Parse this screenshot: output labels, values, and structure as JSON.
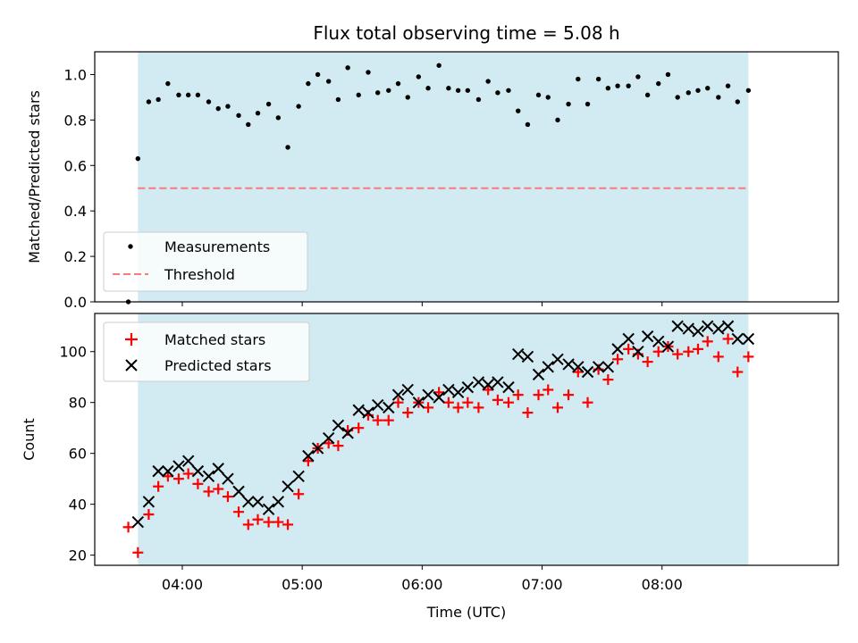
{
  "chart_data": [
    {
      "type": "scatter",
      "title": "Flux total observing time = 5.08 h",
      "xlabel": "",
      "ylabel": "Matched/Predicted stars",
      "ylim": [
        0.0,
        1.1
      ],
      "yticks": [
        "0.0",
        "0.2",
        "0.4",
        "0.6",
        "0.8",
        "1.0"
      ],
      "x_range_hours": [
        3.27,
        9.47
      ],
      "observing_window_hours": [
        3.63,
        8.72
      ],
      "observing_window_color": "#add8e6",
      "grid": false,
      "legend_position": "lower-left",
      "threshold": {
        "name": "Threshold",
        "value": 0.5,
        "x_start_hours": 3.63,
        "x_end_hours": 8.72,
        "color": "#f87a7a",
        "style": "dashed"
      },
      "series": [
        {
          "name": "Measurements",
          "color": "#000000",
          "marker": "dot",
          "x": [
            3.55,
            3.63,
            3.72,
            3.8,
            3.88,
            3.97,
            4.05,
            4.13,
            4.22,
            4.3,
            4.38,
            4.47,
            4.55,
            4.63,
            4.72,
            4.8,
            4.88,
            4.97,
            5.05,
            5.13,
            5.22,
            5.3,
            5.38,
            5.47,
            5.55,
            5.63,
            5.72,
            5.8,
            5.88,
            5.97,
            6.05,
            6.14,
            6.22,
            6.3,
            6.38,
            6.47,
            6.55,
            6.63,
            6.72,
            6.8,
            6.88,
            6.97,
            7.05,
            7.13,
            7.22,
            7.3,
            7.38,
            7.47,
            7.55,
            7.63,
            7.72,
            7.8,
            7.88,
            7.97,
            8.05,
            8.13,
            8.22,
            8.3,
            8.38,
            8.47,
            8.55,
            8.63,
            8.72
          ],
          "values": [
            0.0,
            0.63,
            0.88,
            0.89,
            0.96,
            0.91,
            0.91,
            0.91,
            0.88,
            0.85,
            0.86,
            0.82,
            0.78,
            0.83,
            0.87,
            0.81,
            0.68,
            0.86,
            0.96,
            1.0,
            0.97,
            0.89,
            1.03,
            0.91,
            1.01,
            0.92,
            0.93,
            0.96,
            0.9,
            0.99,
            0.94,
            1.04,
            0.94,
            0.93,
            0.93,
            0.89,
            0.97,
            0.92,
            0.93,
            0.84,
            0.78,
            0.91,
            0.9,
            0.8,
            0.87,
            0.98,
            0.87,
            0.98,
            0.94,
            0.95,
            0.95,
            0.99,
            0.91,
            0.96,
            1.0,
            0.9,
            0.92,
            0.93,
            0.94,
            0.9,
            0.95,
            0.88,
            0.93
          ]
        }
      ]
    },
    {
      "type": "scatter",
      "title": "",
      "xlabel": "Time (UTC)",
      "ylabel": "Count",
      "ylim": [
        16,
        115
      ],
      "yticks": [
        "20",
        "40",
        "60",
        "80",
        "100"
      ],
      "x_range_hours": [
        3.27,
        9.47
      ],
      "xticks": [
        "04:00",
        "05:00",
        "06:00",
        "07:00",
        "08:00"
      ],
      "observing_window_hours": [
        3.63,
        8.72
      ],
      "observing_window_color": "#add8e6",
      "grid": false,
      "legend_position": "upper-left",
      "series": [
        {
          "name": "Matched stars",
          "color": "#ff0000",
          "marker": "plus",
          "x": [
            3.55,
            3.63,
            3.72,
            3.8,
            3.88,
            3.97,
            4.05,
            4.13,
            4.22,
            4.3,
            4.38,
            4.47,
            4.55,
            4.63,
            4.72,
            4.8,
            4.88,
            4.97,
            5.05,
            5.13,
            5.22,
            5.3,
            5.38,
            5.47,
            5.55,
            5.63,
            5.72,
            5.8,
            5.88,
            5.97,
            6.05,
            6.14,
            6.22,
            6.3,
            6.38,
            6.47,
            6.55,
            6.63,
            6.72,
            6.8,
            6.88,
            6.97,
            7.05,
            7.13,
            7.22,
            7.3,
            7.38,
            7.47,
            7.55,
            7.63,
            7.72,
            7.8,
            7.88,
            7.97,
            8.05,
            8.13,
            8.22,
            8.3,
            8.38,
            8.47,
            8.55,
            8.63,
            8.72
          ],
          "values": [
            31,
            21,
            36,
            47,
            51,
            50,
            52,
            48,
            45,
            46,
            43,
            37,
            32,
            34,
            33,
            33,
            32,
            44,
            57,
            62,
            64,
            63,
            69,
            70,
            75,
            73,
            73,
            80,
            76,
            80,
            78,
            84,
            80,
            78,
            80,
            78,
            85,
            81,
            80,
            83,
            76,
            83,
            85,
            78,
            83,
            92,
            80,
            93,
            89,
            97,
            101,
            99,
            96,
            100,
            102,
            99,
            100,
            101,
            104,
            98,
            105,
            92,
            98
          ]
        },
        {
          "name": "Predicted stars",
          "color": "#000000",
          "marker": "x",
          "x": [
            3.63,
            3.72,
            3.8,
            3.88,
            3.97,
            4.05,
            4.13,
            4.22,
            4.3,
            4.38,
            4.47,
            4.55,
            4.63,
            4.72,
            4.8,
            4.88,
            4.97,
            5.05,
            5.13,
            5.22,
            5.3,
            5.38,
            5.47,
            5.55,
            5.63,
            5.72,
            5.8,
            5.88,
            5.97,
            6.05,
            6.14,
            6.22,
            6.3,
            6.38,
            6.47,
            6.55,
            6.63,
            6.72,
            6.8,
            6.88,
            6.97,
            7.05,
            7.13,
            7.22,
            7.3,
            7.38,
            7.47,
            7.55,
            7.63,
            7.72,
            7.8,
            7.88,
            7.97,
            8.05,
            8.13,
            8.22,
            8.3,
            8.38,
            8.47,
            8.55,
            8.63,
            8.72
          ],
          "values": [
            33,
            41,
            53,
            53,
            55,
            57,
            53,
            51,
            54,
            50,
            45,
            41,
            41,
            38,
            41,
            47,
            51,
            59,
            62,
            66,
            71,
            68,
            77,
            76,
            79,
            78,
            83,
            85,
            80,
            83,
            82,
            85,
            84,
            86,
            88,
            87,
            88,
            86,
            99,
            98,
            91,
            94,
            97,
            95,
            94,
            92,
            94,
            94,
            101,
            105,
            100,
            106,
            104,
            102,
            110,
            109,
            108,
            110,
            109,
            110,
            105,
            105
          ]
        }
      ]
    }
  ]
}
